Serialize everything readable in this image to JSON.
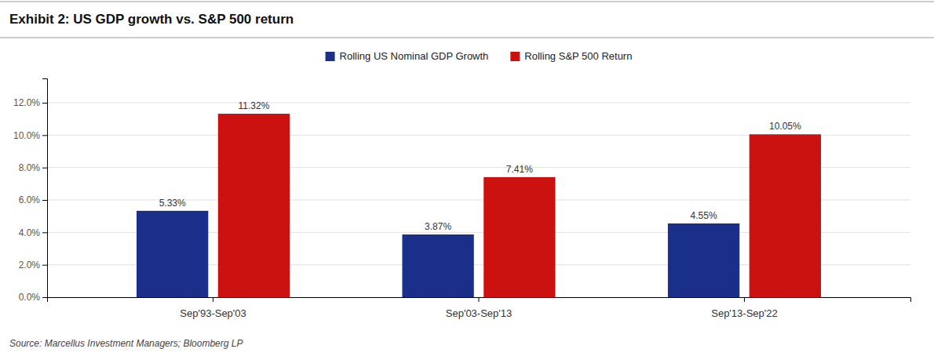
{
  "chart_data": {
    "type": "bar",
    "title": "Exhibit 2: US GDP growth vs. S&P 500 return",
    "categories": [
      "Sep'93-Sep'03",
      "Sep'03-Sep'13",
      "Sep'13-Sep'22"
    ],
    "series": [
      {
        "name": "Rolling US Nominal GDP Growth",
        "color": "#1a2f8a",
        "values": [
          5.33,
          3.87,
          4.55
        ],
        "value_labels": [
          "5.33%",
          "3.87%",
          "4.55%"
        ]
      },
      {
        "name": "Rolling S&P 500 Return",
        "color": "#cc1111",
        "values": [
          11.32,
          7.41,
          10.05
        ],
        "value_labels": [
          "11.32%",
          "7.41%",
          "10.05%"
        ]
      }
    ],
    "ylim": [
      0,
      13.5
    ],
    "yticks": [
      {
        "value": 0,
        "label": "0.0%"
      },
      {
        "value": 2,
        "label": "2.0%"
      },
      {
        "value": 4,
        "label": "4.0%"
      },
      {
        "value": 6,
        "label": "6.0%"
      },
      {
        "value": 8,
        "label": "8.0%"
      },
      {
        "value": 10,
        "label": "10.0%"
      },
      {
        "value": 12,
        "label": "12.0%"
      }
    ],
    "grid": true,
    "legend": "top",
    "data_labels": true,
    "annotations": [
      "Source: Marcellus Investment Managers; Bloomberg LP"
    ]
  }
}
